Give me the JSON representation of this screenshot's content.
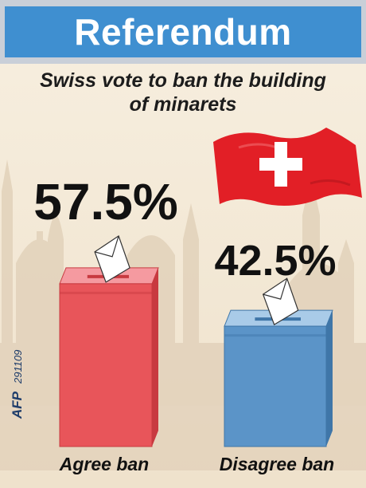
{
  "header": {
    "title": "Referendum"
  },
  "subtitle": {
    "line1": "Swiss vote to ban the building",
    "line2": "of minarets"
  },
  "credit": {
    "agency": "AFP",
    "date_code": "291109"
  },
  "colors": {
    "header_blue": "#3f8fd0",
    "agree_red": "#e8555a",
    "disagree_blue": "#5b94c8",
    "flag_red": "#e21f26"
  },
  "chart_data": {
    "type": "bar",
    "categories": [
      "Agree ban",
      "Disagree ban"
    ],
    "values": [
      57.5,
      42.5
    ],
    "value_labels": [
      "57.5%",
      "42.5%"
    ],
    "ylim": [
      0,
      100
    ]
  }
}
